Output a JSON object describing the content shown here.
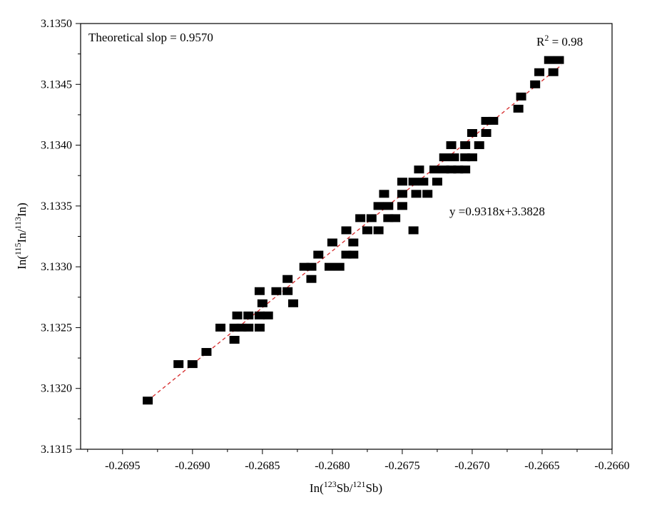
{
  "chart_data": {
    "type": "scatter",
    "title": "",
    "xlabel": {
      "pre": "In(",
      "sup1": "123",
      "mid": "Sb/",
      "sup2": "121",
      "post": "Sb)"
    },
    "ylabel": {
      "pre": "In(",
      "sup1": "115",
      "mid": "In/",
      "sup2": "113",
      "post": "In)"
    },
    "xlim": [
      -0.2698,
      -0.266
    ],
    "ylim": [
      3.1315,
      3.135
    ],
    "xticks": [
      "-0.2695",
      "-0.2690",
      "-0.2685",
      "-0.2680",
      "-0.2675",
      "-0.2670",
      "-0.2665",
      "-0.2660"
    ],
    "yticks": [
      "3.1315",
      "3.1320",
      "3.1325",
      "3.1330",
      "3.1335",
      "3.1340",
      "3.1345",
      "3.1350"
    ],
    "annotations": {
      "theoretical": "Theoretical slop = 0.9570",
      "r2_pre": "R",
      "r2_sup": "2",
      "r2_post": " = 0.98",
      "equation": "y =0.9318x+3.3828"
    },
    "fit": {
      "x": [
        -0.26932,
        -0.26636
      ],
      "y": [
        3.1319,
        3.13466
      ],
      "color": "#d62728",
      "style": "dashed"
    },
    "marker_color": "#000000",
    "points": [
      [
        -0.26932,
        3.1319
      ],
      [
        -0.2691,
        3.1322
      ],
      [
        -0.269,
        3.1322
      ],
      [
        -0.2689,
        3.1323
      ],
      [
        -0.2688,
        3.1325
      ],
      [
        -0.2687,
        3.1325
      ],
      [
        -0.2687,
        3.1324
      ],
      [
        -0.26865,
        3.1325
      ],
      [
        -0.2686,
        3.1325
      ],
      [
        -0.26868,
        3.1326
      ],
      [
        -0.2686,
        3.1326
      ],
      [
        -0.26852,
        3.1326
      ],
      [
        -0.26852,
        3.1325
      ],
      [
        -0.26846,
        3.1326
      ],
      [
        -0.2685,
        3.1327
      ],
      [
        -0.26852,
        3.1328
      ],
      [
        -0.2684,
        3.1328
      ],
      [
        -0.26832,
        3.1328
      ],
      [
        -0.26832,
        3.1329
      ],
      [
        -0.26828,
        3.1327
      ],
      [
        -0.2682,
        3.133
      ],
      [
        -0.26815,
        3.133
      ],
      [
        -0.26815,
        3.1329
      ],
      [
        -0.2681,
        3.1331
      ],
      [
        -0.26802,
        3.133
      ],
      [
        -0.26795,
        3.133
      ],
      [
        -0.268,
        3.1332
      ],
      [
        -0.2679,
        3.1331
      ],
      [
        -0.26785,
        3.1331
      ],
      [
        -0.2679,
        3.1333
      ],
      [
        -0.26785,
        3.1332
      ],
      [
        -0.2678,
        3.1334
      ],
      [
        -0.26772,
        3.1334
      ],
      [
        -0.26775,
        3.1333
      ],
      [
        -0.26767,
        3.1333
      ],
      [
        -0.26767,
        3.1335
      ],
      [
        -0.2676,
        3.1335
      ],
      [
        -0.26763,
        3.1336
      ],
      [
        -0.2676,
        3.1334
      ],
      [
        -0.26755,
        3.1334
      ],
      [
        -0.2675,
        3.1335
      ],
      [
        -0.2675,
        3.1336
      ],
      [
        -0.2674,
        3.1336
      ],
      [
        -0.26732,
        3.1336
      ],
      [
        -0.2675,
        3.1337
      ],
      [
        -0.26742,
        3.1337
      ],
      [
        -0.26735,
        3.1337
      ],
      [
        -0.26738,
        3.1338
      ],
      [
        -0.26742,
        3.1333
      ],
      [
        -0.26725,
        3.1337
      ],
      [
        -0.26727,
        3.1338
      ],
      [
        -0.2672,
        3.1338
      ],
      [
        -0.2672,
        3.1339
      ],
      [
        -0.26715,
        3.1338
      ],
      [
        -0.2671,
        3.1338
      ],
      [
        -0.26705,
        3.1338
      ],
      [
        -0.26713,
        3.1339
      ],
      [
        -0.26705,
        3.1339
      ],
      [
        -0.267,
        3.1339
      ],
      [
        -0.26715,
        3.134
      ],
      [
        -0.26705,
        3.134
      ],
      [
        -0.267,
        3.1341
      ],
      [
        -0.26695,
        3.134
      ],
      [
        -0.2669,
        3.1341
      ],
      [
        -0.2669,
        3.1342
      ],
      [
        -0.26685,
        3.1342
      ],
      [
        -0.26667,
        3.1343
      ],
      [
        -0.26665,
        3.1344
      ],
      [
        -0.26655,
        3.1345
      ],
      [
        -0.26652,
        3.1346
      ],
      [
        -0.26642,
        3.1346
      ],
      [
        -0.26645,
        3.1347
      ],
      [
        -0.26638,
        3.1347
      ]
    ]
  }
}
